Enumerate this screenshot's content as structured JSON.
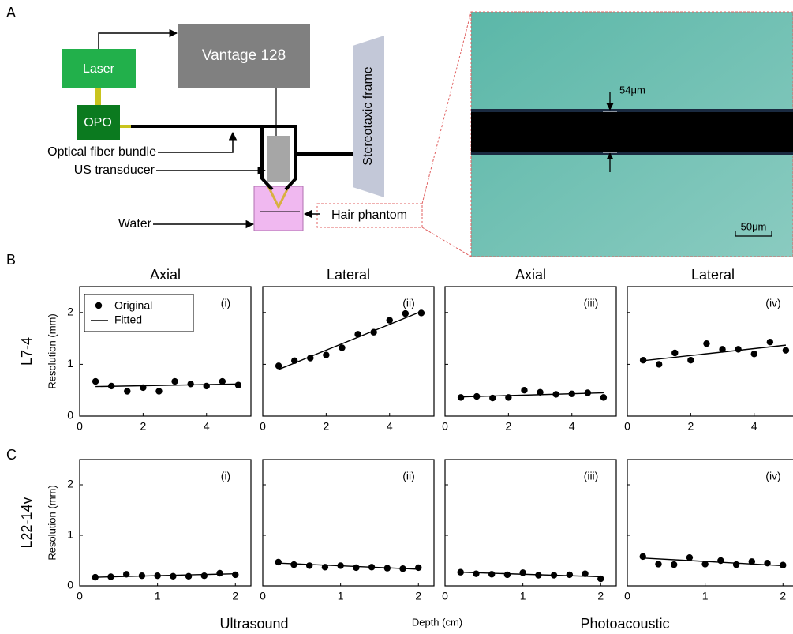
{
  "panel_labels": [
    "A",
    "B",
    "C"
  ],
  "diagram": {
    "laser": "Laser",
    "vantage": "Vantage 128",
    "opo": "OPO",
    "fiber": "Optical fiber bundle",
    "transducer": "US transducer",
    "water": "Water",
    "phantom": "Hair phantom",
    "frame": "Stereotaxic frame"
  },
  "micrograph": {
    "thickness_label": "54μm",
    "scale_label": "50μm"
  },
  "x_label": "Depth (cm)",
  "groups": [
    "Ultrasound",
    "Photoacoustic"
  ],
  "chart_data": [
    {
      "type": "scatter",
      "title": "Axial",
      "panel": "(i)",
      "row_label": "L7-4",
      "ylabel": "Resolution (mm)",
      "legend": "upper left",
      "xlim": [
        0,
        5.4
      ],
      "ylim": [
        0,
        2.5
      ],
      "xticks": [
        0,
        2,
        4
      ],
      "yticks": [
        0,
        1,
        2
      ],
      "series": [
        {
          "name": "Original",
          "color": "#000000",
          "x": [
            0.5,
            1,
            1.5,
            2,
            2.5,
            3,
            3.5,
            4,
            4.5,
            5
          ],
          "values": [
            0.67,
            0.58,
            0.48,
            0.55,
            0.48,
            0.67,
            0.62,
            0.58,
            0.67,
            0.6
          ]
        },
        {
          "name": "Fitted",
          "color": "#000000",
          "x": [
            0.5,
            5
          ],
          "values": [
            0.57,
            0.62
          ]
        }
      ]
    },
    {
      "type": "scatter",
      "title": "Lateral",
      "panel": "(ii)",
      "xlim": [
        0,
        5.4
      ],
      "ylim": [
        0,
        2.5
      ],
      "xticks": [
        0,
        2,
        4
      ],
      "yticks": [
        0,
        1,
        2
      ],
      "series": [
        {
          "color": "#000000",
          "x": [
            0.5,
            1,
            1.5,
            2,
            2.5,
            3,
            3.5,
            4,
            4.5,
            5
          ],
          "values": [
            0.97,
            1.07,
            1.12,
            1.18,
            1.32,
            1.58,
            1.62,
            1.85,
            1.98,
            1.99
          ]
        },
        {
          "color": "#000000",
          "x": [
            0.5,
            5
          ],
          "values": [
            0.9,
            2.02
          ]
        }
      ]
    },
    {
      "type": "scatter",
      "title": "Axial",
      "panel": "(iii)",
      "xlim": [
        0,
        5.4
      ],
      "ylim": [
        0,
        2.5
      ],
      "xticks": [
        0,
        2,
        4
      ],
      "yticks": [
        0,
        1,
        2
      ],
      "series": [
        {
          "color": "#000000",
          "x": [
            0.5,
            1,
            1.5,
            2,
            2.5,
            3,
            3.5,
            4,
            4.5,
            5
          ],
          "values": [
            0.36,
            0.38,
            0.35,
            0.36,
            0.5,
            0.46,
            0.42,
            0.43,
            0.45,
            0.36
          ]
        },
        {
          "color": "#000000",
          "x": [
            0.5,
            5
          ],
          "values": [
            0.37,
            0.45
          ]
        }
      ]
    },
    {
      "type": "scatter",
      "title": "Lateral",
      "panel": "(iv)",
      "xlim": [
        0,
        5.4
      ],
      "ylim": [
        0,
        2.5
      ],
      "xticks": [
        0,
        2,
        4
      ],
      "yticks": [
        0,
        1,
        2
      ],
      "series": [
        {
          "color": "#000000",
          "x": [
            0.5,
            1,
            1.5,
            2,
            2.5,
            3,
            3.5,
            4,
            4.5,
            5
          ],
          "values": [
            1.08,
            1.0,
            1.22,
            1.08,
            1.4,
            1.29,
            1.29,
            1.2,
            1.43,
            1.27
          ]
        },
        {
          "color": "#000000",
          "x": [
            0.5,
            5
          ],
          "values": [
            1.07,
            1.37
          ]
        }
      ]
    },
    {
      "type": "scatter",
      "panel": "(i)",
      "row_label": "L22-14v",
      "ylabel": "Resolution (mm)",
      "xlim": [
        0,
        2.2
      ],
      "ylim": [
        0,
        2.5
      ],
      "xticks": [
        0,
        1,
        2
      ],
      "yticks": [
        0,
        1,
        2
      ],
      "series": [
        {
          "color": "#000000",
          "x": [
            0.2,
            0.4,
            0.6,
            0.8,
            1,
            1.2,
            1.4,
            1.6,
            1.8,
            2
          ],
          "values": [
            0.17,
            0.18,
            0.23,
            0.2,
            0.2,
            0.19,
            0.19,
            0.2,
            0.25,
            0.22
          ]
        },
        {
          "color": "#000000",
          "x": [
            0.2,
            2
          ],
          "values": [
            0.17,
            0.24
          ]
        }
      ]
    },
    {
      "type": "scatter",
      "panel": "(ii)",
      "xlim": [
        0,
        2.2
      ],
      "ylim": [
        0,
        2.5
      ],
      "xticks": [
        0,
        1,
        2
      ],
      "yticks": [
        0,
        1,
        2
      ],
      "series": [
        {
          "color": "#000000",
          "x": [
            0.2,
            0.4,
            0.6,
            0.8,
            1,
            1.2,
            1.4,
            1.6,
            1.8,
            2
          ],
          "values": [
            0.47,
            0.42,
            0.4,
            0.37,
            0.4,
            0.36,
            0.37,
            0.35,
            0.34,
            0.36
          ]
        },
        {
          "color": "#000000",
          "x": [
            0.2,
            2
          ],
          "values": [
            0.45,
            0.33
          ]
        }
      ]
    },
    {
      "type": "scatter",
      "panel": "(iii)",
      "xlim": [
        0,
        2.2
      ],
      "ylim": [
        0,
        2.5
      ],
      "xticks": [
        0,
        1,
        2
      ],
      "yticks": [
        0,
        1,
        2
      ],
      "series": [
        {
          "color": "#000000",
          "x": [
            0.2,
            0.4,
            0.6,
            0.8,
            1,
            1.2,
            1.4,
            1.6,
            1.8,
            2
          ],
          "values": [
            0.27,
            0.24,
            0.23,
            0.22,
            0.26,
            0.21,
            0.21,
            0.22,
            0.24,
            0.14
          ]
        },
        {
          "color": "#000000",
          "x": [
            0.2,
            2
          ],
          "values": [
            0.27,
            0.18
          ]
        }
      ]
    },
    {
      "type": "scatter",
      "panel": "(iv)",
      "xlim": [
        0,
        2.2
      ],
      "ylim": [
        0,
        2.5
      ],
      "xticks": [
        0,
        1,
        2
      ],
      "yticks": [
        0,
        1,
        2
      ],
      "series": [
        {
          "color": "#000000",
          "x": [
            0.2,
            0.4,
            0.6,
            0.8,
            1,
            1.2,
            1.4,
            1.6,
            1.8,
            2
          ],
          "values": [
            0.58,
            0.43,
            0.42,
            0.56,
            0.43,
            0.5,
            0.42,
            0.48,
            0.45,
            0.41
          ]
        },
        {
          "color": "#000000",
          "x": [
            0.2,
            2
          ],
          "values": [
            0.55,
            0.4
          ]
        }
      ]
    }
  ]
}
